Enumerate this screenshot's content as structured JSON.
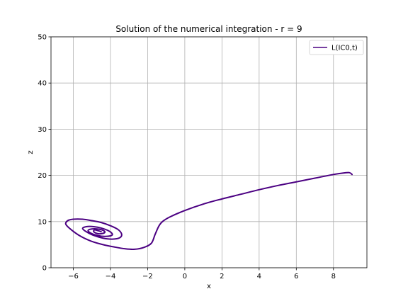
{
  "chart_data": {
    "type": "line",
    "title": "Solution of the numerical integration - r = 9",
    "xlabel": "x",
    "ylabel": "z",
    "xlim": [
      -7.2,
      9.8
    ],
    "ylim": [
      0,
      50
    ],
    "xticks": [
      -6,
      -4,
      -2,
      0,
      2,
      4,
      6,
      8
    ],
    "yticks": [
      0,
      10,
      20,
      30,
      40,
      50
    ],
    "xtick_labels": [
      "−6",
      "−4",
      "−2",
      "0",
      "2",
      "4",
      "6",
      "8"
    ],
    "ytick_labels": [
      "0",
      "10",
      "20",
      "30",
      "40",
      "50"
    ],
    "grid": true,
    "legend_position": "top-right",
    "series": [
      {
        "name": "L(IC0,t)",
        "color": "#4b0082",
        "x": [
          9.0,
          8.85,
          8.5,
          8.0,
          7.0,
          6.0,
          5.0,
          4.0,
          3.0,
          2.0,
          1.0,
          0.0,
          -0.8,
          -1.2,
          -1.4,
          -1.6,
          -1.8,
          -2.2,
          -2.7,
          -3.2,
          -3.8,
          -4.4,
          -5.0,
          -5.6,
          -6.1,
          -6.4,
          -6.3,
          -6.0,
          -5.5,
          -5.0,
          -4.5,
          -4.0,
          -3.6,
          -3.4,
          -3.5,
          -3.9,
          -4.4,
          -4.9,
          -5.3,
          -5.5,
          -5.3,
          -4.9,
          -4.5,
          -4.1,
          -3.9,
          -4.0,
          -4.4,
          -4.8,
          -5.1,
          -5.2,
          -5.0,
          -4.7,
          -4.4,
          -4.3,
          -4.45,
          -4.7,
          -4.9,
          -4.85,
          -4.65,
          -4.5
        ],
        "y": [
          20.2,
          20.6,
          20.5,
          20.2,
          19.4,
          18.6,
          17.8,
          16.9,
          15.9,
          14.9,
          13.8,
          12.4,
          11.0,
          10.0,
          9.0,
          7.2,
          5.3,
          4.4,
          4.0,
          4.1,
          4.5,
          5.0,
          5.7,
          6.8,
          8.2,
          9.4,
          10.2,
          10.5,
          10.5,
          10.2,
          9.8,
          9.1,
          8.3,
          7.3,
          6.5,
          6.2,
          6.4,
          7.0,
          7.8,
          8.5,
          8.9,
          8.9,
          8.6,
          8.0,
          7.3,
          6.9,
          6.8,
          7.1,
          7.6,
          8.1,
          8.4,
          8.4,
          8.1,
          7.7,
          7.4,
          7.4,
          7.8,
          8.2,
          8.0,
          7.8
        ]
      }
    ]
  }
}
